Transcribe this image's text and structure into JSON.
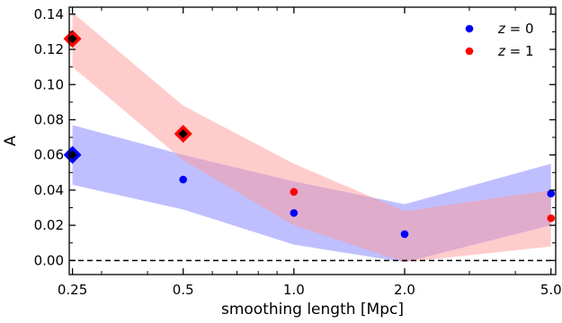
{
  "chart_data": {
    "type": "scatter",
    "title": "",
    "xlabel": "smoothing length [Mpc]",
    "ylabel": "A",
    "xscale": "log",
    "xlim": [
      0.245,
      5.15
    ],
    "ylim": [
      -0.008,
      0.144
    ],
    "grid": false,
    "legend_position": "top-right",
    "x_ticks": [
      0.25,
      0.5,
      1.0,
      2.0,
      5.0
    ],
    "x_tick_labels": [
      "0.25",
      "0.5",
      "1.0",
      "2.0",
      "5.0"
    ],
    "y_ticks": [
      0.0,
      0.02,
      0.04,
      0.06,
      0.08,
      0.1,
      0.12,
      0.14
    ],
    "y_tick_labels": [
      "0.00",
      "0.02",
      "0.04",
      "0.06",
      "0.08",
      "0.10",
      "0.12",
      "0.14"
    ],
    "reference_line": {
      "y": 0.0,
      "style": "dashed",
      "color": "#000000"
    },
    "series": [
      {
        "name": "z = 0",
        "color": "#0000ff",
        "band_color": "#8080ff",
        "x": [
          0.25,
          0.5,
          1.0,
          2.0,
          5.0
        ],
        "y": [
          0.06,
          0.046,
          0.027,
          0.015,
          0.038
        ],
        "band_lower": [
          0.043,
          0.029,
          0.009,
          -0.001,
          0.02
        ],
        "band_upper": [
          0.077,
          0.06,
          0.045,
          0.032,
          0.055
        ],
        "highlighted_x": [
          0.25
        ]
      },
      {
        "name": "z = 1",
        "color": "#ff0000",
        "band_color": "#ff9999",
        "x": [
          0.25,
          0.5,
          1.0,
          2.0,
          5.0
        ],
        "y": [
          0.126,
          0.072,
          0.039,
          null,
          0.024
        ],
        "band_lower": [
          0.11,
          0.057,
          0.02,
          -0.001,
          0.008
        ],
        "band_upper": [
          0.141,
          0.088,
          0.055,
          0.028,
          0.04
        ],
        "highlighted_x": [
          0.25,
          0.5
        ]
      }
    ],
    "legend": [
      {
        "symbol_text": "z",
        "equals": "=",
        "value": "0",
        "color": "#0000ff"
      },
      {
        "symbol_text": "z",
        "equals": "=",
        "value": "1",
        "color": "#ff0000"
      }
    ]
  }
}
